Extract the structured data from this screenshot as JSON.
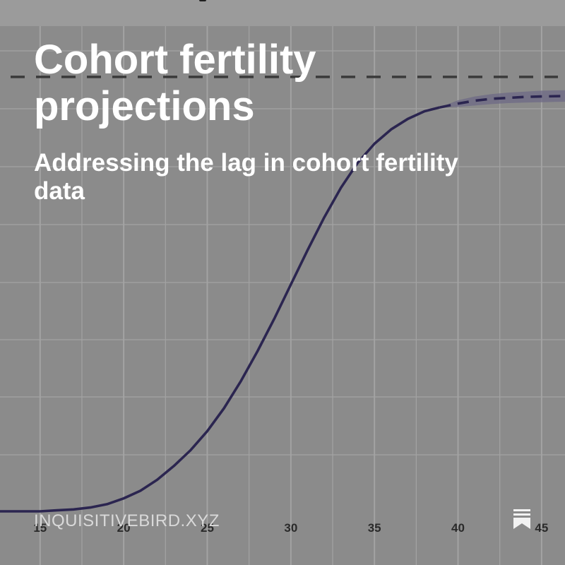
{
  "header": {
    "title": "Cohort fertility projections",
    "subtitle": "Addressing the lag in cohort fertility data"
  },
  "footer": {
    "watermark": "INQUISITIVEBIRD.XYZ",
    "brand_icon": "bookmark-lines-icon"
  },
  "colors": {
    "background": "#8b8b8b",
    "grid": "#a3a3a3",
    "line": "#2b2550",
    "band": "#6d6a86",
    "reference": "#3a3a3a",
    "text": "#ffffff"
  },
  "chart_data": {
    "type": "line",
    "xlim": [
      12.6,
      46.4
    ],
    "ylim": [
      0,
      1
    ],
    "x_ticks": [
      15,
      20,
      25,
      30,
      35,
      40,
      45
    ],
    "x_tick_labels": [
      "15",
      "20",
      "25",
      "30",
      "35",
      "40",
      "45"
    ],
    "grid": true,
    "reference_line": {
      "y": 0.91,
      "style": "dashed"
    },
    "series": [
      {
        "style": "solid",
        "x": [
          12.6,
          15,
          16,
          17,
          18,
          19,
          20,
          21,
          22,
          23,
          24,
          25,
          26,
          27,
          28,
          29,
          30,
          31,
          32,
          33,
          34,
          35,
          36,
          37,
          38,
          38.9
        ],
        "y": [
          0.0,
          0.0,
          0.002,
          0.004,
          0.008,
          0.015,
          0.027,
          0.043,
          0.066,
          0.095,
          0.128,
          0.168,
          0.216,
          0.272,
          0.335,
          0.403,
          0.475,
          0.547,
          0.616,
          0.678,
          0.73,
          0.77,
          0.8,
          0.822,
          0.838,
          0.846
        ]
      },
      {
        "style": "dashed",
        "x": [
          38.9,
          40,
          41,
          42,
          43,
          44,
          45,
          46.4
        ],
        "y": [
          0.846,
          0.854,
          0.86,
          0.864,
          0.866,
          0.868,
          0.869,
          0.87
        ],
        "band_upper": [
          0.846,
          0.861,
          0.869,
          0.874,
          0.877,
          0.879,
          0.881,
          0.882
        ],
        "band_lower": [
          0.846,
          0.847,
          0.85,
          0.853,
          0.855,
          0.856,
          0.857,
          0.858
        ]
      }
    ]
  }
}
